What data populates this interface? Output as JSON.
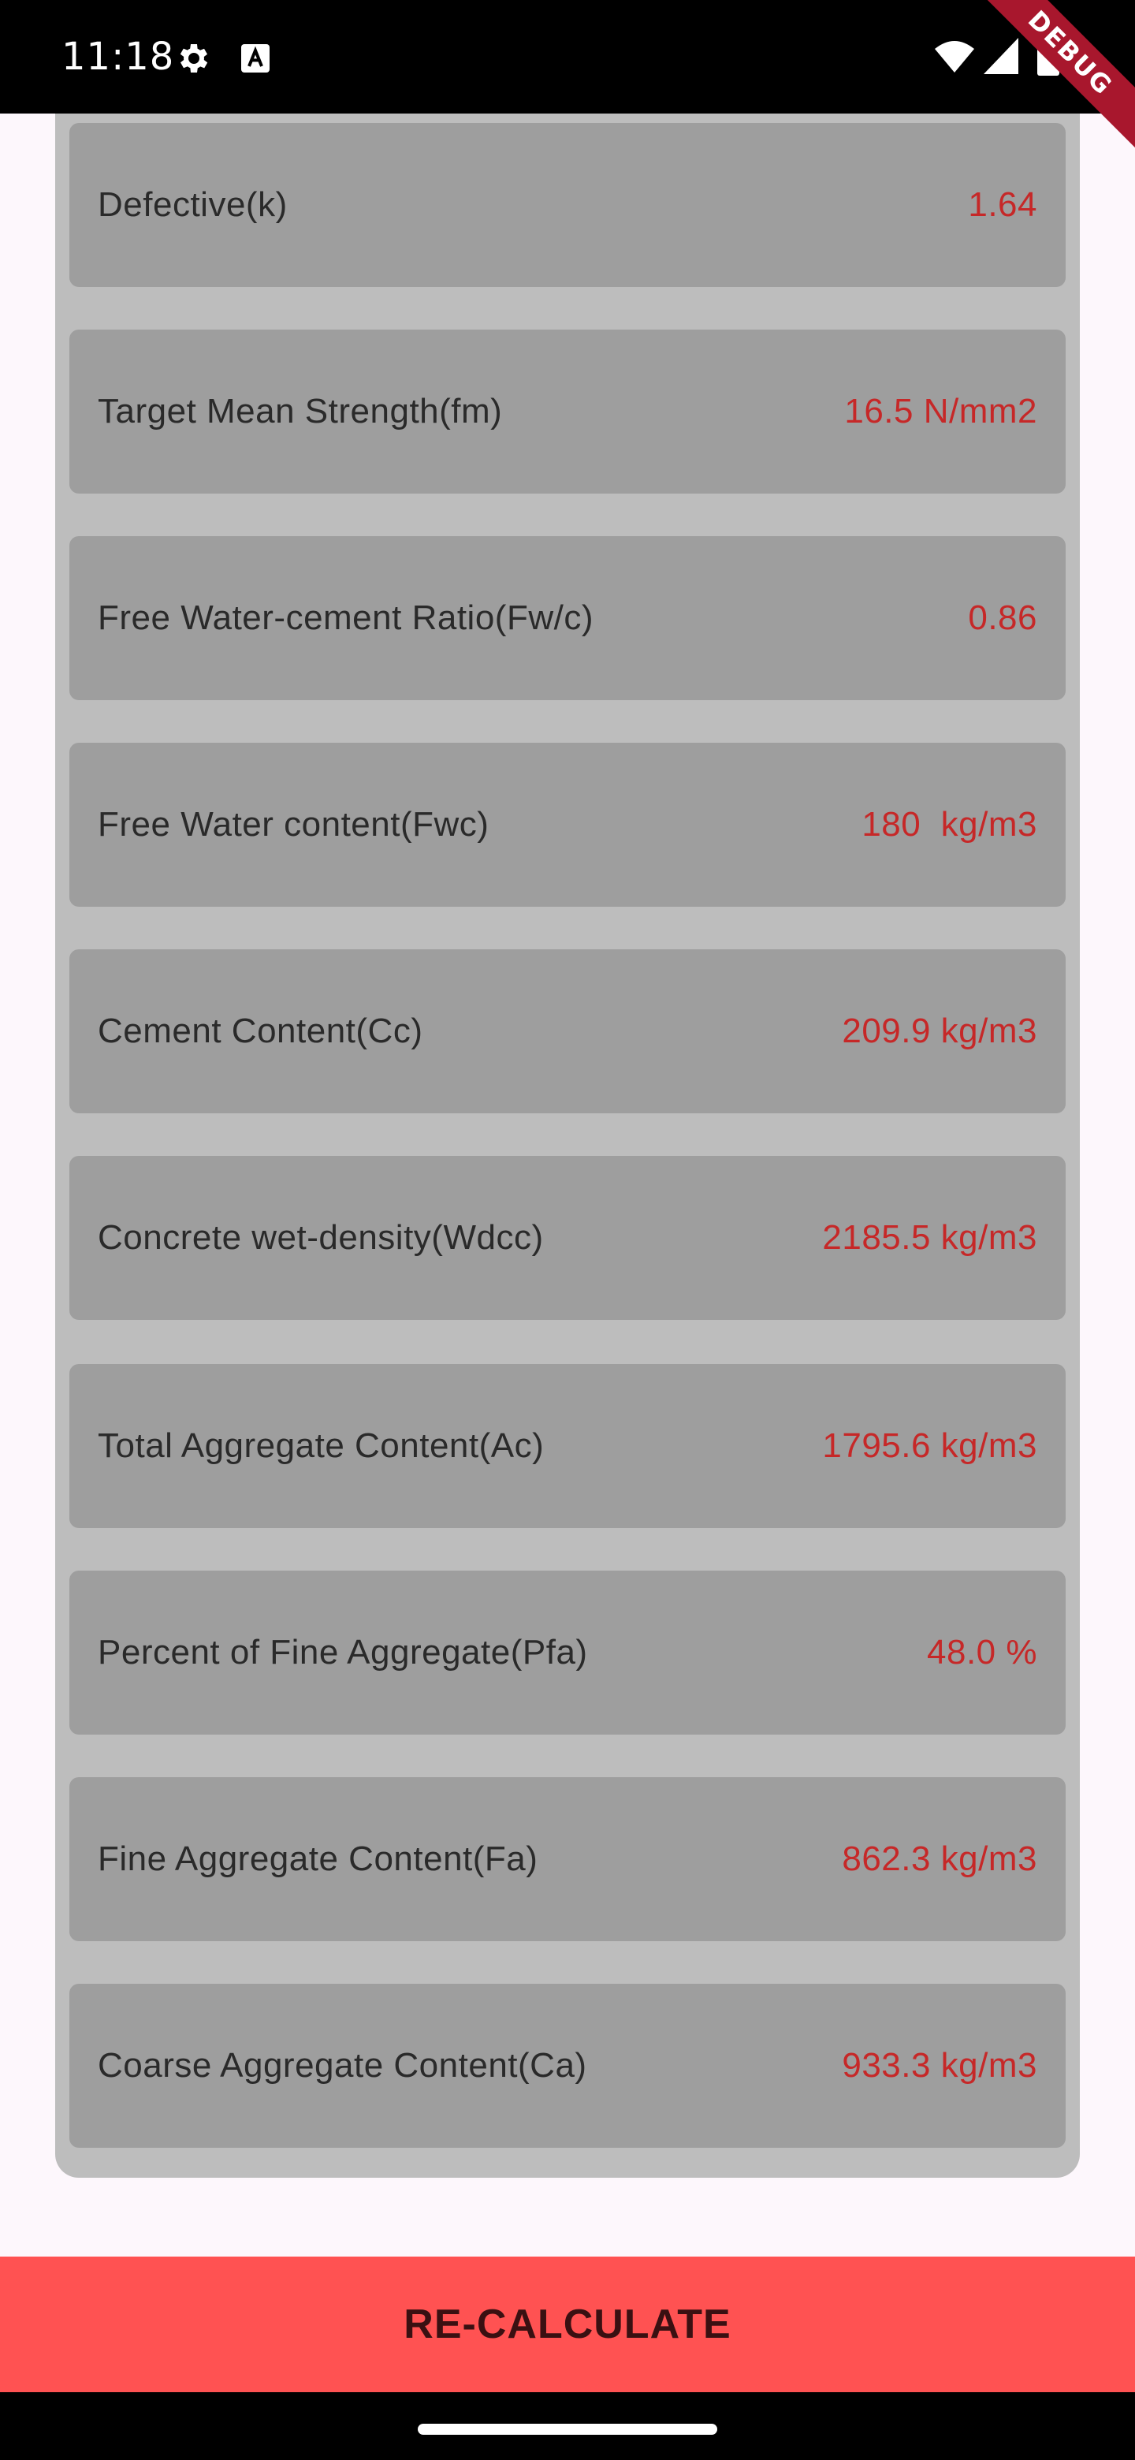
{
  "status_bar": {
    "time": "11:18",
    "icons": [
      "gear-icon",
      "a-notification-icon",
      "wifi-icon",
      "signal-icon",
      "battery-icon"
    ]
  },
  "debug_banner": "DEBUG",
  "results": [
    {
      "label": "Defective(k)",
      "value": "1.64"
    },
    {
      "label": "Target Mean Strength(fm)",
      "value": "16.5 N/mm2"
    },
    {
      "label": "Free Water-cement Ratio(Fw/c)",
      "value": "0.86"
    },
    {
      "label": "Free Water content(Fwc)",
      "value": "180  kg/m3"
    },
    {
      "label": "Cement Content(Cc)",
      "value": "209.9 kg/m3"
    },
    {
      "label": "Concrete wet-density(Wdcc)",
      "value": "2185.5 kg/m3"
    },
    {
      "label": "Total Aggregate Content(Ac)",
      "value": "1795.6 kg/m3"
    },
    {
      "label": "Percent of Fine Aggregate(Pfa)",
      "value": "48.0 %"
    },
    {
      "label": "Fine Aggregate Content(Fa)",
      "value": "862.3 kg/m3"
    },
    {
      "label": "Coarse Aggregate Content(Ca)",
      "value": "933.3 kg/m3"
    }
  ],
  "recalculate_label": "RE-CALCULATE",
  "colors": {
    "panel": "#bdbdbd",
    "card": "#9e9e9e",
    "value_text": "#c62828",
    "button": "#ff5252"
  }
}
